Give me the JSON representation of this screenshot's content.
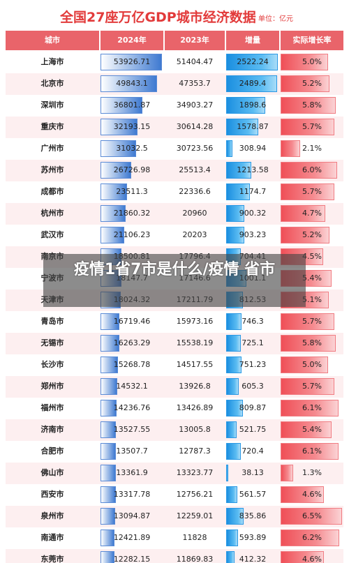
{
  "title": "全国27座万亿GDP城市经济数据",
  "unit": "单位：亿元",
  "overlay_text": "疫情1省7市是什么/疫情 省市",
  "colors": {
    "header": "#e9646a",
    "title": "#e23a3a",
    "gdp_bar": "#3f7ad1",
    "increase_bar": "#1b8fe0",
    "growth_bar": "#ef4f57",
    "stripe": "#fdeff0"
  },
  "chart_data": {
    "type": "table",
    "columns": [
      "城市",
      "2024年",
      "2023年",
      "增量",
      "实际增长率"
    ],
    "rows": [
      [
        "上海市",
        "53926.71",
        "51404.47",
        "2522.24",
        "5.0%"
      ],
      [
        "北京市",
        "49843.1",
        "47353.7",
        "2489.4",
        "5.2%"
      ],
      [
        "深圳市",
        "36801.87",
        "34903.27",
        "1898.6",
        "5.8%"
      ],
      [
        "重庆市",
        "32193.15",
        "30614.28",
        "1578.87",
        "5.7%"
      ],
      [
        "广州市",
        "31032.5",
        "30723.56",
        "308.94",
        "2.1%"
      ],
      [
        "苏州市",
        "26726.98",
        "25513.4",
        "1213.58",
        "6.0%"
      ],
      [
        "成都市",
        "23511.3",
        "22336.6",
        "1174.7",
        "5.7%"
      ],
      [
        "杭州市",
        "21860.32",
        "20960",
        "900.32",
        "4.7%"
      ],
      [
        "武汉市",
        "21106.23",
        "20203",
        "903.23",
        "5.2%"
      ],
      [
        "南京市",
        "18500.81",
        "17796.4",
        "704.41",
        "4.5%"
      ],
      [
        "宁波市",
        "18147.7",
        "17146.6",
        "1001.1",
        "5.4%"
      ],
      [
        "天津市",
        "18024.32",
        "17211.79",
        "812.53",
        "5.1%"
      ],
      [
        "青岛市",
        "16719.46",
        "15973.16",
        "746.3",
        "5.7%"
      ],
      [
        "无锡市",
        "16263.29",
        "15538.19",
        "725.1",
        "5.8%"
      ],
      [
        "长沙市",
        "15268.78",
        "14517.55",
        "751.23",
        "5.0%"
      ],
      [
        "郑州市",
        "14532.1",
        "13926.8",
        "605.3",
        "5.7%"
      ],
      [
        "福州市",
        "14236.76",
        "13426.89",
        "809.87",
        "6.1%"
      ],
      [
        "济南市",
        "13527.55",
        "13005.8",
        "521.75",
        "5.4%"
      ],
      [
        "合肥市",
        "13507.7",
        "12787.3",
        "720.4",
        "6.1%"
      ],
      [
        "佛山市",
        "13361.9",
        "13323.77",
        "38.13",
        "1.3%"
      ],
      [
        "西安市",
        "13317.78",
        "12756.21",
        "561.57",
        "4.6%"
      ],
      [
        "泉州市",
        "13094.87",
        "12259.01",
        "835.86",
        "6.5%"
      ],
      [
        "南通市",
        "12421.89",
        "11828",
        "593.89",
        "6.2%"
      ],
      [
        "东莞市",
        "12282.15",
        "11869.83",
        "412.32",
        "4.6%"
      ]
    ]
  }
}
